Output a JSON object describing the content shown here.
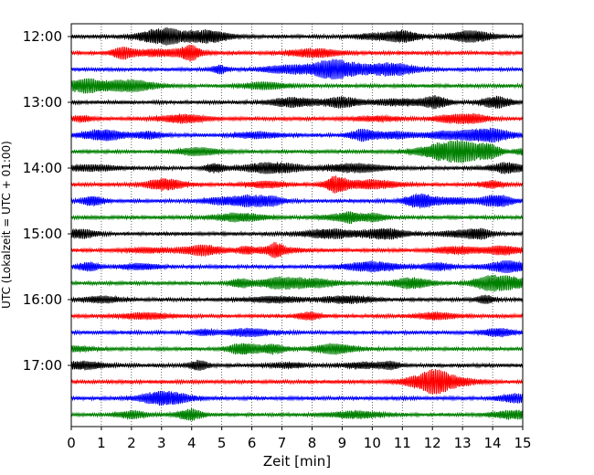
{
  "chart_data": {
    "type": "line",
    "title": "",
    "xlabel": "Zeit  [min]",
    "ylabel": "UTC (Lokalzeit = UTC + 01:00)",
    "xlim": [
      0,
      15
    ],
    "x_ticks": [
      "0",
      "1",
      "2",
      "3",
      "4",
      "5",
      "6",
      "7",
      "8",
      "9",
      "10",
      "11",
      "12",
      "13",
      "14",
      "15"
    ],
    "y_ticks": [
      "12:00",
      "13:00",
      "14:00",
      "15:00",
      "16:00",
      "17:00"
    ],
    "grid": "vertical dotted lines at each minute",
    "trace_colors": [
      "#000000",
      "#ff0000",
      "#0000ff",
      "#008000"
    ],
    "traces": [
      {
        "start": "12:00"
      },
      {
        "start": "12:15"
      },
      {
        "start": "12:30"
      },
      {
        "start": "12:45"
      },
      {
        "start": "13:00"
      },
      {
        "start": "13:15"
      },
      {
        "start": "13:30"
      },
      {
        "start": "13:45"
      },
      {
        "start": "14:00"
      },
      {
        "start": "14:15"
      },
      {
        "start": "14:30"
      },
      {
        "start": "14:45"
      },
      {
        "start": "15:00"
      },
      {
        "start": "15:15"
      },
      {
        "start": "15:30"
      },
      {
        "start": "15:45"
      },
      {
        "start": "16:00"
      },
      {
        "start": "16:15"
      },
      {
        "start": "16:30"
      },
      {
        "start": "16:45"
      },
      {
        "start": "17:00"
      },
      {
        "start": "17:15"
      },
      {
        "start": "17:30"
      },
      {
        "start": "17:45"
      }
    ]
  }
}
